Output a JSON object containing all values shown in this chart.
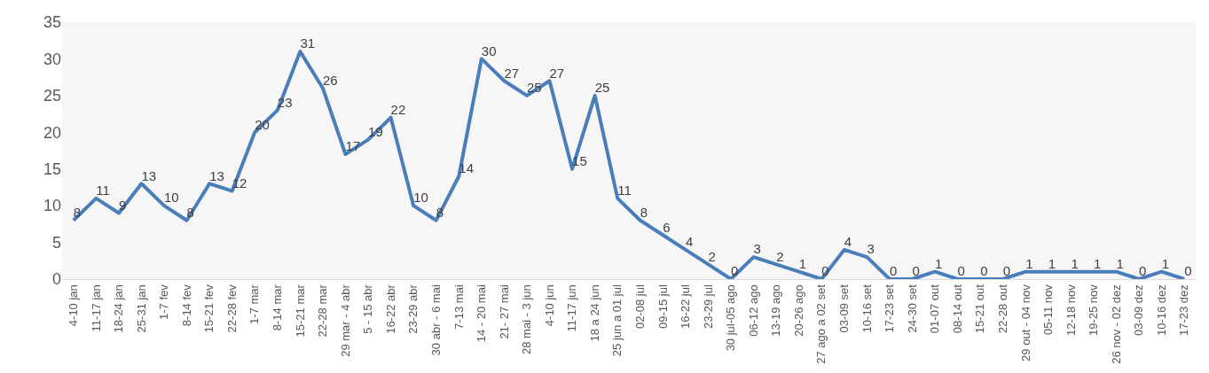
{
  "chart_data": {
    "type": "line",
    "categories": [
      "4-10 jan",
      "11-17 jan",
      "18-24 jan",
      "25-31 jan",
      "1-7 fev",
      "8-14 fev",
      "15-21 fev",
      "22-28 fev",
      "1-7 mar",
      "8-14 mar",
      "15-21 mar",
      "22-28 mar",
      "29 mar - 4 abr",
      "5 - 15 abr",
      "16-22 abr",
      "23-29 abr",
      "30 abr - 6 mai",
      "7-13 mai",
      "14 - 20 mai",
      "21- 27 mai",
      "28 mai - 3 jun",
      "4-10 jun",
      "11-17 jun",
      "18 a 24 jun",
      "25 jun a 01 jul",
      "02-08 jul",
      "09-15 jul",
      "16-22 jul",
      "23-29 jul",
      "30 jul-05 ago",
      "06-12 ago",
      "13-19 ago",
      "20-26 ago",
      "27 ago a 02 set",
      "03-09 set",
      "10-16 set",
      "17-23 set",
      "24-30 set",
      "01-07 out",
      "08-14 out",
      "15-21 out",
      "22-28 out",
      "29 out - 04 nov",
      "05-11 nov",
      "12-18 nov",
      "19-25 nov",
      "26 nov - 02 dez",
      "03-09 dez",
      "10-16 dez",
      "17-23 dez"
    ],
    "series": [
      {
        "color": "#4a7ebb",
        "values": [
          8,
          11,
          9,
          13,
          10,
          8,
          13,
          12,
          20,
          23,
          31,
          26,
          17,
          19,
          22,
          10,
          8,
          14,
          30,
          27,
          25,
          27,
          15,
          25,
          11,
          8,
          6,
          4,
          2,
          0,
          3,
          2,
          1,
          0,
          4,
          3,
          0,
          0,
          1,
          0,
          0,
          0,
          1,
          1,
          1,
          1,
          1,
          0,
          1,
          0
        ]
      }
    ],
    "ylim": [
      0,
      35
    ],
    "yticks": [
      0,
      5,
      10,
      15,
      20,
      25,
      30,
      35
    ],
    "grid": false,
    "marker": "none",
    "line_style": "solid",
    "data_labels": true
  }
}
